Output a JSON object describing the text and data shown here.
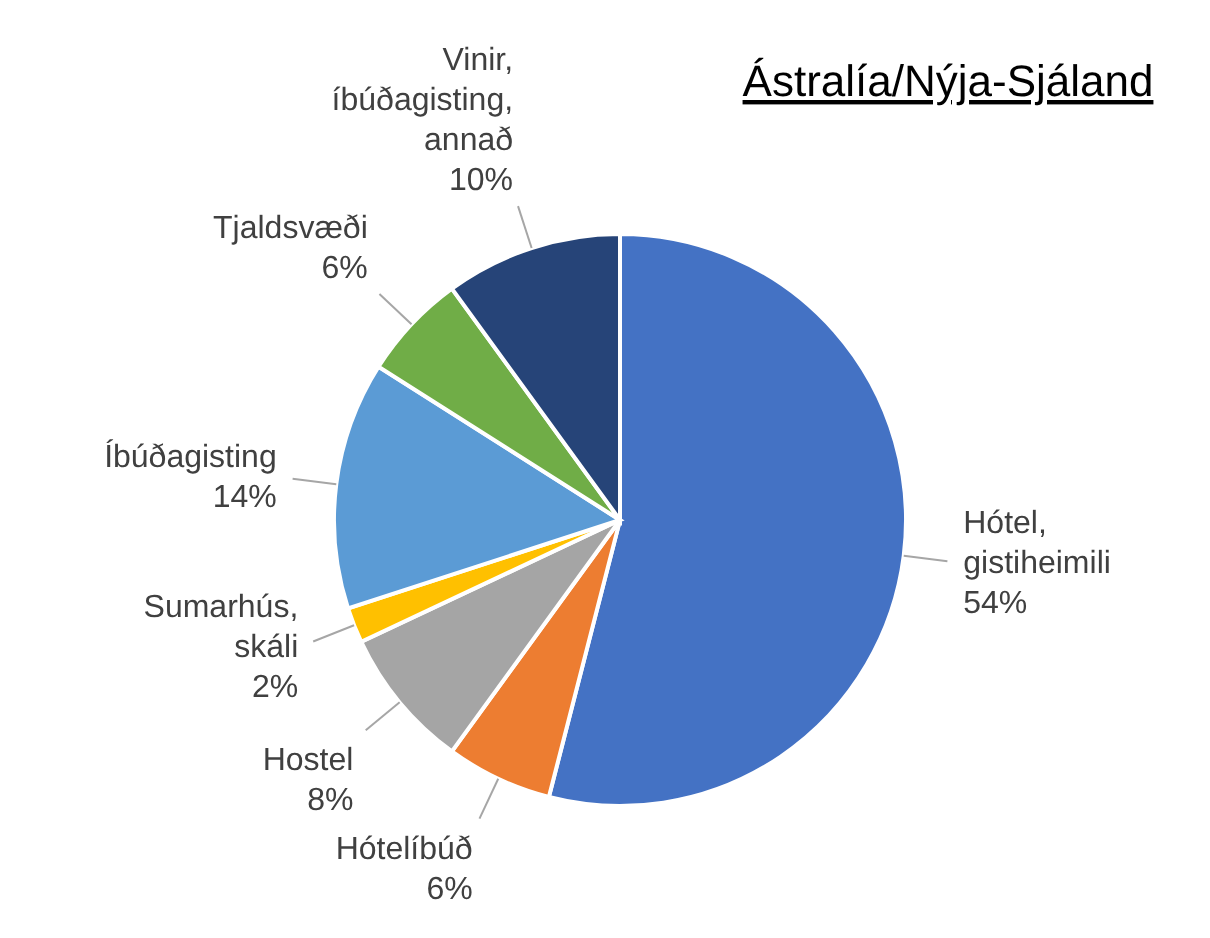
{
  "chart_data": {
    "type": "pie",
    "title": "Ástralía/Nýja-Sjáland",
    "categories": [
      "Hótel, gistiheimili",
      "Hótelíbúð",
      "Hostel",
      "Sumarhús, skáli",
      "Íbúðagisting",
      "Tjaldsvæði",
      "Vinir, íbúðagisting, annað"
    ],
    "values": [
      54,
      6,
      8,
      2,
      14,
      6,
      10
    ],
    "value_labels": [
      "54%",
      "6%",
      "8%",
      "2%",
      "14%",
      "6%",
      "10%"
    ],
    "colors": [
      "#4472c4",
      "#ed7d31",
      "#a5a5a5",
      "#ffc000",
      "#5b9bd5",
      "#70ad47",
      "#264478"
    ],
    "legend": false
  }
}
